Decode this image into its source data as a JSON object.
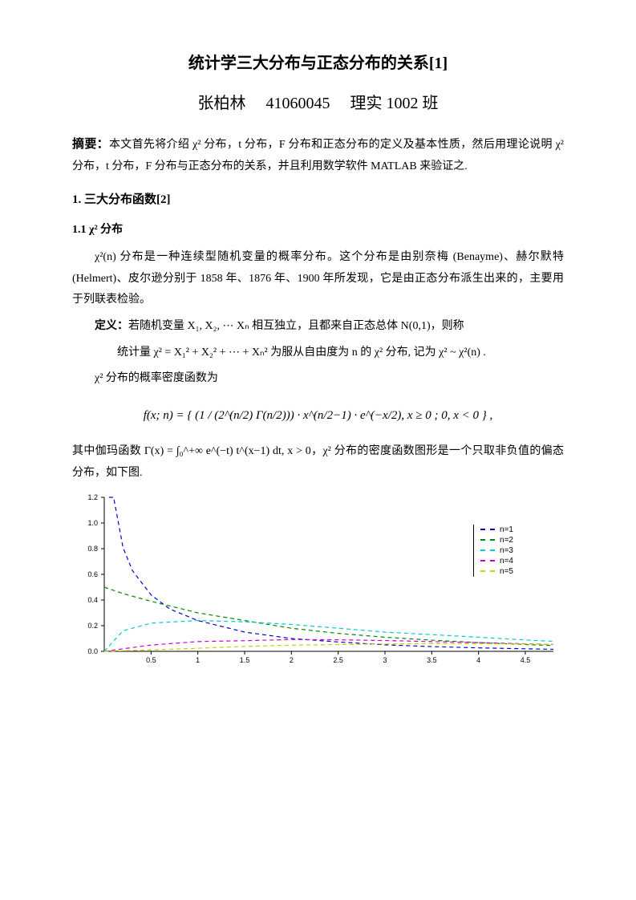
{
  "title": "统计学三大分布与正态分布的关系[1]",
  "author": {
    "name": "张柏林",
    "id": "41060045",
    "class": "理实 1002 班"
  },
  "abstract_label": "摘要：",
  "abstract_body": "本文首先将介绍 χ² 分布，t 分布，F 分布和正态分布的定义及基本性质，然后用理论说明 χ² 分布，t 分布，F 分布与正态分布的关系，并且利用数学软件 MATLAB 来验证之.",
  "section1": {
    "heading": "1. 三大分布函数[2]",
    "sub1_heading": "1.1 χ² 分布",
    "para1": "χ²(n) 分布是一种连续型随机变量的概率分布。这个分布是由别奈梅 (Benayme)、赫尔默特(Helmert)、皮尔逊分别于 1858 年、1876 年、1900 年所发现，它是由正态分布派生出来的，主要用于列联表检验。",
    "def_label": "定义：",
    "def_body": "若随机变量 X₁, X₂, ⋯ Xₙ 相互独立，且都来自正态总体 N(0,1)，则称",
    "def_line2": "统计量 χ² = X₁² + X₂² + ⋯ + Xₙ² 为服从自由度为 n 的 χ² 分布, 记为 χ² ~ χ²(n) .",
    "para3": "χ² 分布的概率密度函数为",
    "formula_display": "f(x; n) = { (1 / (2^(n/2) Γ(n/2))) · x^(n/2−1) · e^(−x/2),  x ≥ 0 ;  0,  x < 0 } ,",
    "para4_pre": "其中伽玛函数 Γ(x) = ∫₀^+∞ e^(−t) t^(x−1) dt, x > 0，χ² 分布的密度函数图形是一个只取非负值的偏态分布，如下图."
  },
  "chart": {
    "type": "line",
    "background_color": "#ffffff",
    "grid_color": "#e0e0e0",
    "axis_color": "#000000",
    "xlim": [
      0,
      4.8
    ],
    "ylim": [
      0,
      1.2
    ],
    "xtick_step": 0.5,
    "ytick_step": 0.2,
    "tick_fontsize": 9,
    "line_style": "dashed",
    "line_width": 1.2,
    "series": [
      {
        "label": "n=1",
        "color": "#0000cc",
        "x": [
          0.05,
          0.1,
          0.2,
          0.3,
          0.5,
          0.7,
          1.0,
          1.5,
          2.0,
          2.5,
          3.0,
          3.5,
          4.0,
          4.5,
          4.8
        ],
        "y": [
          1.2,
          1.2,
          0.81,
          0.63,
          0.44,
          0.33,
          0.24,
          0.15,
          0.1,
          0.073,
          0.051,
          0.037,
          0.027,
          0.02,
          0.016
        ]
      },
      {
        "label": "n=2",
        "color": "#008800",
        "x": [
          0,
          0.2,
          0.5,
          1.0,
          1.5,
          2.0,
          2.5,
          3.0,
          3.5,
          4.0,
          4.5,
          4.8
        ],
        "y": [
          0.5,
          0.45,
          0.39,
          0.3,
          0.24,
          0.18,
          0.14,
          0.11,
          0.087,
          0.068,
          0.053,
          0.045
        ]
      },
      {
        "label": "n=3",
        "color": "#00cccc",
        "x": [
          0,
          0.2,
          0.5,
          1.0,
          1.5,
          2.0,
          2.5,
          3.0,
          3.5,
          4.0,
          4.5,
          4.8
        ],
        "y": [
          0,
          0.16,
          0.22,
          0.24,
          0.23,
          0.21,
          0.18,
          0.15,
          0.13,
          0.11,
          0.089,
          0.078
        ]
      },
      {
        "label": "n=4",
        "color": "#cc00cc",
        "x": [
          0,
          0.5,
          1.0,
          1.5,
          2.0,
          2.5,
          3.0,
          3.5,
          4.0,
          4.5,
          4.8
        ],
        "y": [
          0,
          0.049,
          0.076,
          0.083,
          0.092,
          0.09,
          0.084,
          0.076,
          0.068,
          0.059,
          0.054
        ]
      },
      {
        "label": "n=5",
        "color": "#cccc00",
        "x": [
          0,
          0.5,
          1.0,
          1.5,
          2.0,
          2.5,
          3.0,
          3.5,
          4.0,
          4.5,
          4.8
        ],
        "y": [
          0,
          0.011,
          0.024,
          0.038,
          0.048,
          0.053,
          0.058,
          0.06,
          0.06,
          0.057,
          0.055
        ]
      }
    ]
  }
}
